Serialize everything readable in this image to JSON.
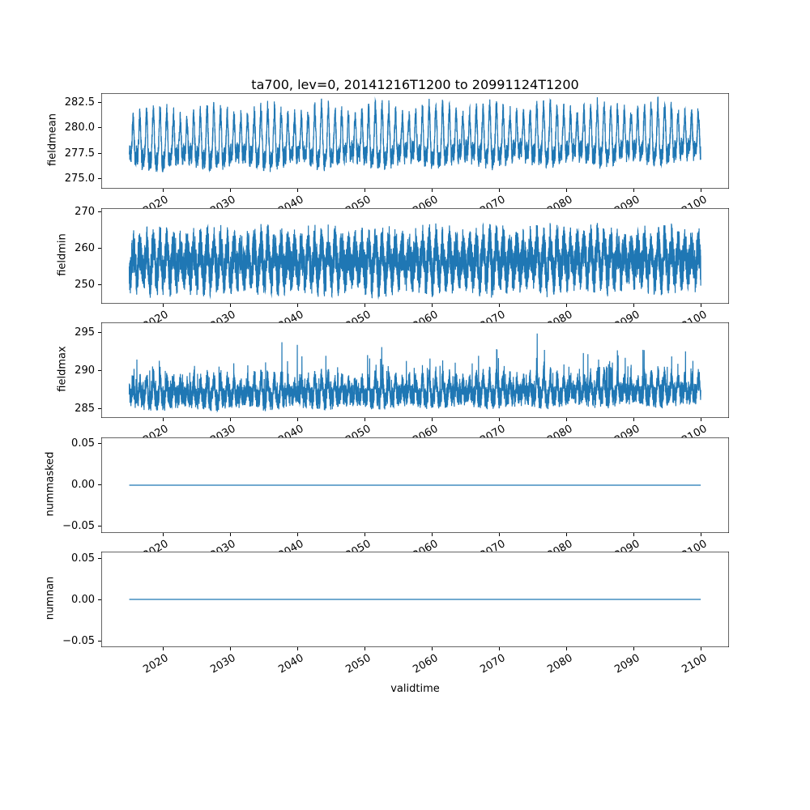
{
  "figure": {
    "title": "ta700, lev=0, 20141216T1200 to 20991124T1200",
    "xlabel": "validtime",
    "line_color": "#1f77b4",
    "background": "#ffffff"
  },
  "x_axis": {
    "lim": [
      2010.8,
      2104.1
    ],
    "ticks": [
      2020,
      2030,
      2040,
      2050,
      2060,
      2070,
      2080,
      2090,
      2100
    ],
    "tick_labels": [
      "2020",
      "2030",
      "2040",
      "2050",
      "2060",
      "2070",
      "2080",
      "2090",
      "2100"
    ],
    "data_range": [
      2014.96,
      2099.9
    ],
    "tick_rotation_deg": 30
  },
  "chart_data": [
    {
      "type": "line",
      "name": "fieldmean",
      "ylabel": "fieldmean",
      "ylim": [
        274.0,
        283.4
      ],
      "yticks": [
        275.0,
        277.5,
        280.0,
        282.5
      ],
      "ytick_labels": [
        "275.0",
        "277.5",
        "280.0",
        "282.5"
      ],
      "value_summary": {
        "min": 274.4,
        "max": 283.0,
        "mean": 278.6,
        "pattern": "annual oscillation of roughly +/-2.5 with high-frequency noise and slight upward trend over 2015-2100"
      },
      "synth": {
        "n_points": 6200,
        "seed": 11,
        "base": 278.35,
        "trend": 0.007,
        "annual_amp": 2.05,
        "annual_amp_mod": 0.5,
        "phase": 0.28,
        "semi_amp": 0.85,
        "noise": 0.95,
        "spike_prob": 0,
        "spike_amp": 0,
        "spike_positive_only": false,
        "vmin": 274.3,
        "vmax": 283.05
      }
    },
    {
      "type": "line",
      "name": "fieldmin",
      "ylabel": "fieldmin",
      "ylim": [
        244.8,
        271.2
      ],
      "yticks": [
        250,
        260,
        270
      ],
      "ytick_labels": [
        "250",
        "260",
        "270"
      ],
      "value_summary": {
        "min": 246,
        "max": 270,
        "mean": 256,
        "pattern": "dense noisy band roughly 249-266 with annual cycle, extremes near 246 and 270"
      },
      "synth": {
        "n_points": 6200,
        "seed": 22,
        "base": 256.3,
        "trend": 0.009,
        "annual_amp": 3.9,
        "annual_amp_mod": 0.8,
        "phase": 0.3,
        "semi_amp": 0.0,
        "noise": 5.9,
        "spike_prob": 0.012,
        "spike_amp": 1.6,
        "spike_positive_only": false,
        "vmin": 246.0,
        "vmax": 270.2
      }
    },
    {
      "type": "line",
      "name": "fieldmax",
      "ylabel": "fieldmax",
      "ylim": [
        283.7,
        296.3
      ],
      "yticks": [
        285,
        290,
        295
      ],
      "ytick_labels": [
        "285",
        "290",
        "295"
      ],
      "value_summary": {
        "min": 284.2,
        "max": 295.5,
        "mean": 287.5,
        "pattern": "noisy band roughly 285-290 with frequent upward spikes reaching about 293-295.5"
      },
      "synth": {
        "n_points": 6200,
        "seed": 33,
        "base": 286.9,
        "trend": 0.006,
        "annual_amp": 1.0,
        "annual_amp_mod": 0.4,
        "phase": 0.3,
        "semi_amp": 0.5,
        "noise": 1.45,
        "spike_prob": 0.06,
        "spike_amp": 1.5,
        "spike_positive_only": true,
        "vmin": 284.1,
        "vmax": 295.6
      }
    },
    {
      "type": "line",
      "name": "nummasked",
      "ylabel": "nummasked",
      "ylim": [
        -0.058,
        0.058
      ],
      "yticks": [
        -0.05,
        0.0,
        0.05
      ],
      "ytick_labels": [
        "−0.05",
        "0.00",
        "0.05"
      ],
      "value_summary": {
        "constant": 0,
        "pattern": "flat line at exactly 0 for the whole period"
      },
      "synth": {
        "n_points": 2,
        "seed": 44,
        "base": 0,
        "trend": 0,
        "annual_amp": 0,
        "annual_amp_mod": 0,
        "phase": 0,
        "semi_amp": 0,
        "noise": 0,
        "spike_prob": 0,
        "spike_amp": 0,
        "spike_positive_only": false,
        "vmin": 0,
        "vmax": 0
      }
    },
    {
      "type": "line",
      "name": "numnan",
      "ylabel": "numnan",
      "ylim": [
        -0.058,
        0.058
      ],
      "yticks": [
        -0.05,
        0.0,
        0.05
      ],
      "ytick_labels": [
        "−0.05",
        "0.00",
        "0.05"
      ],
      "value_summary": {
        "constant": 0,
        "pattern": "flat line at exactly 0 for the whole period"
      },
      "synth": {
        "n_points": 2,
        "seed": 55,
        "base": 0,
        "trend": 0,
        "annual_amp": 0,
        "annual_amp_mod": 0,
        "phase": 0,
        "semi_amp": 0,
        "noise": 0,
        "spike_prob": 0,
        "spike_amp": 0,
        "spike_positive_only": false,
        "vmin": 0,
        "vmax": 0
      }
    }
  ]
}
